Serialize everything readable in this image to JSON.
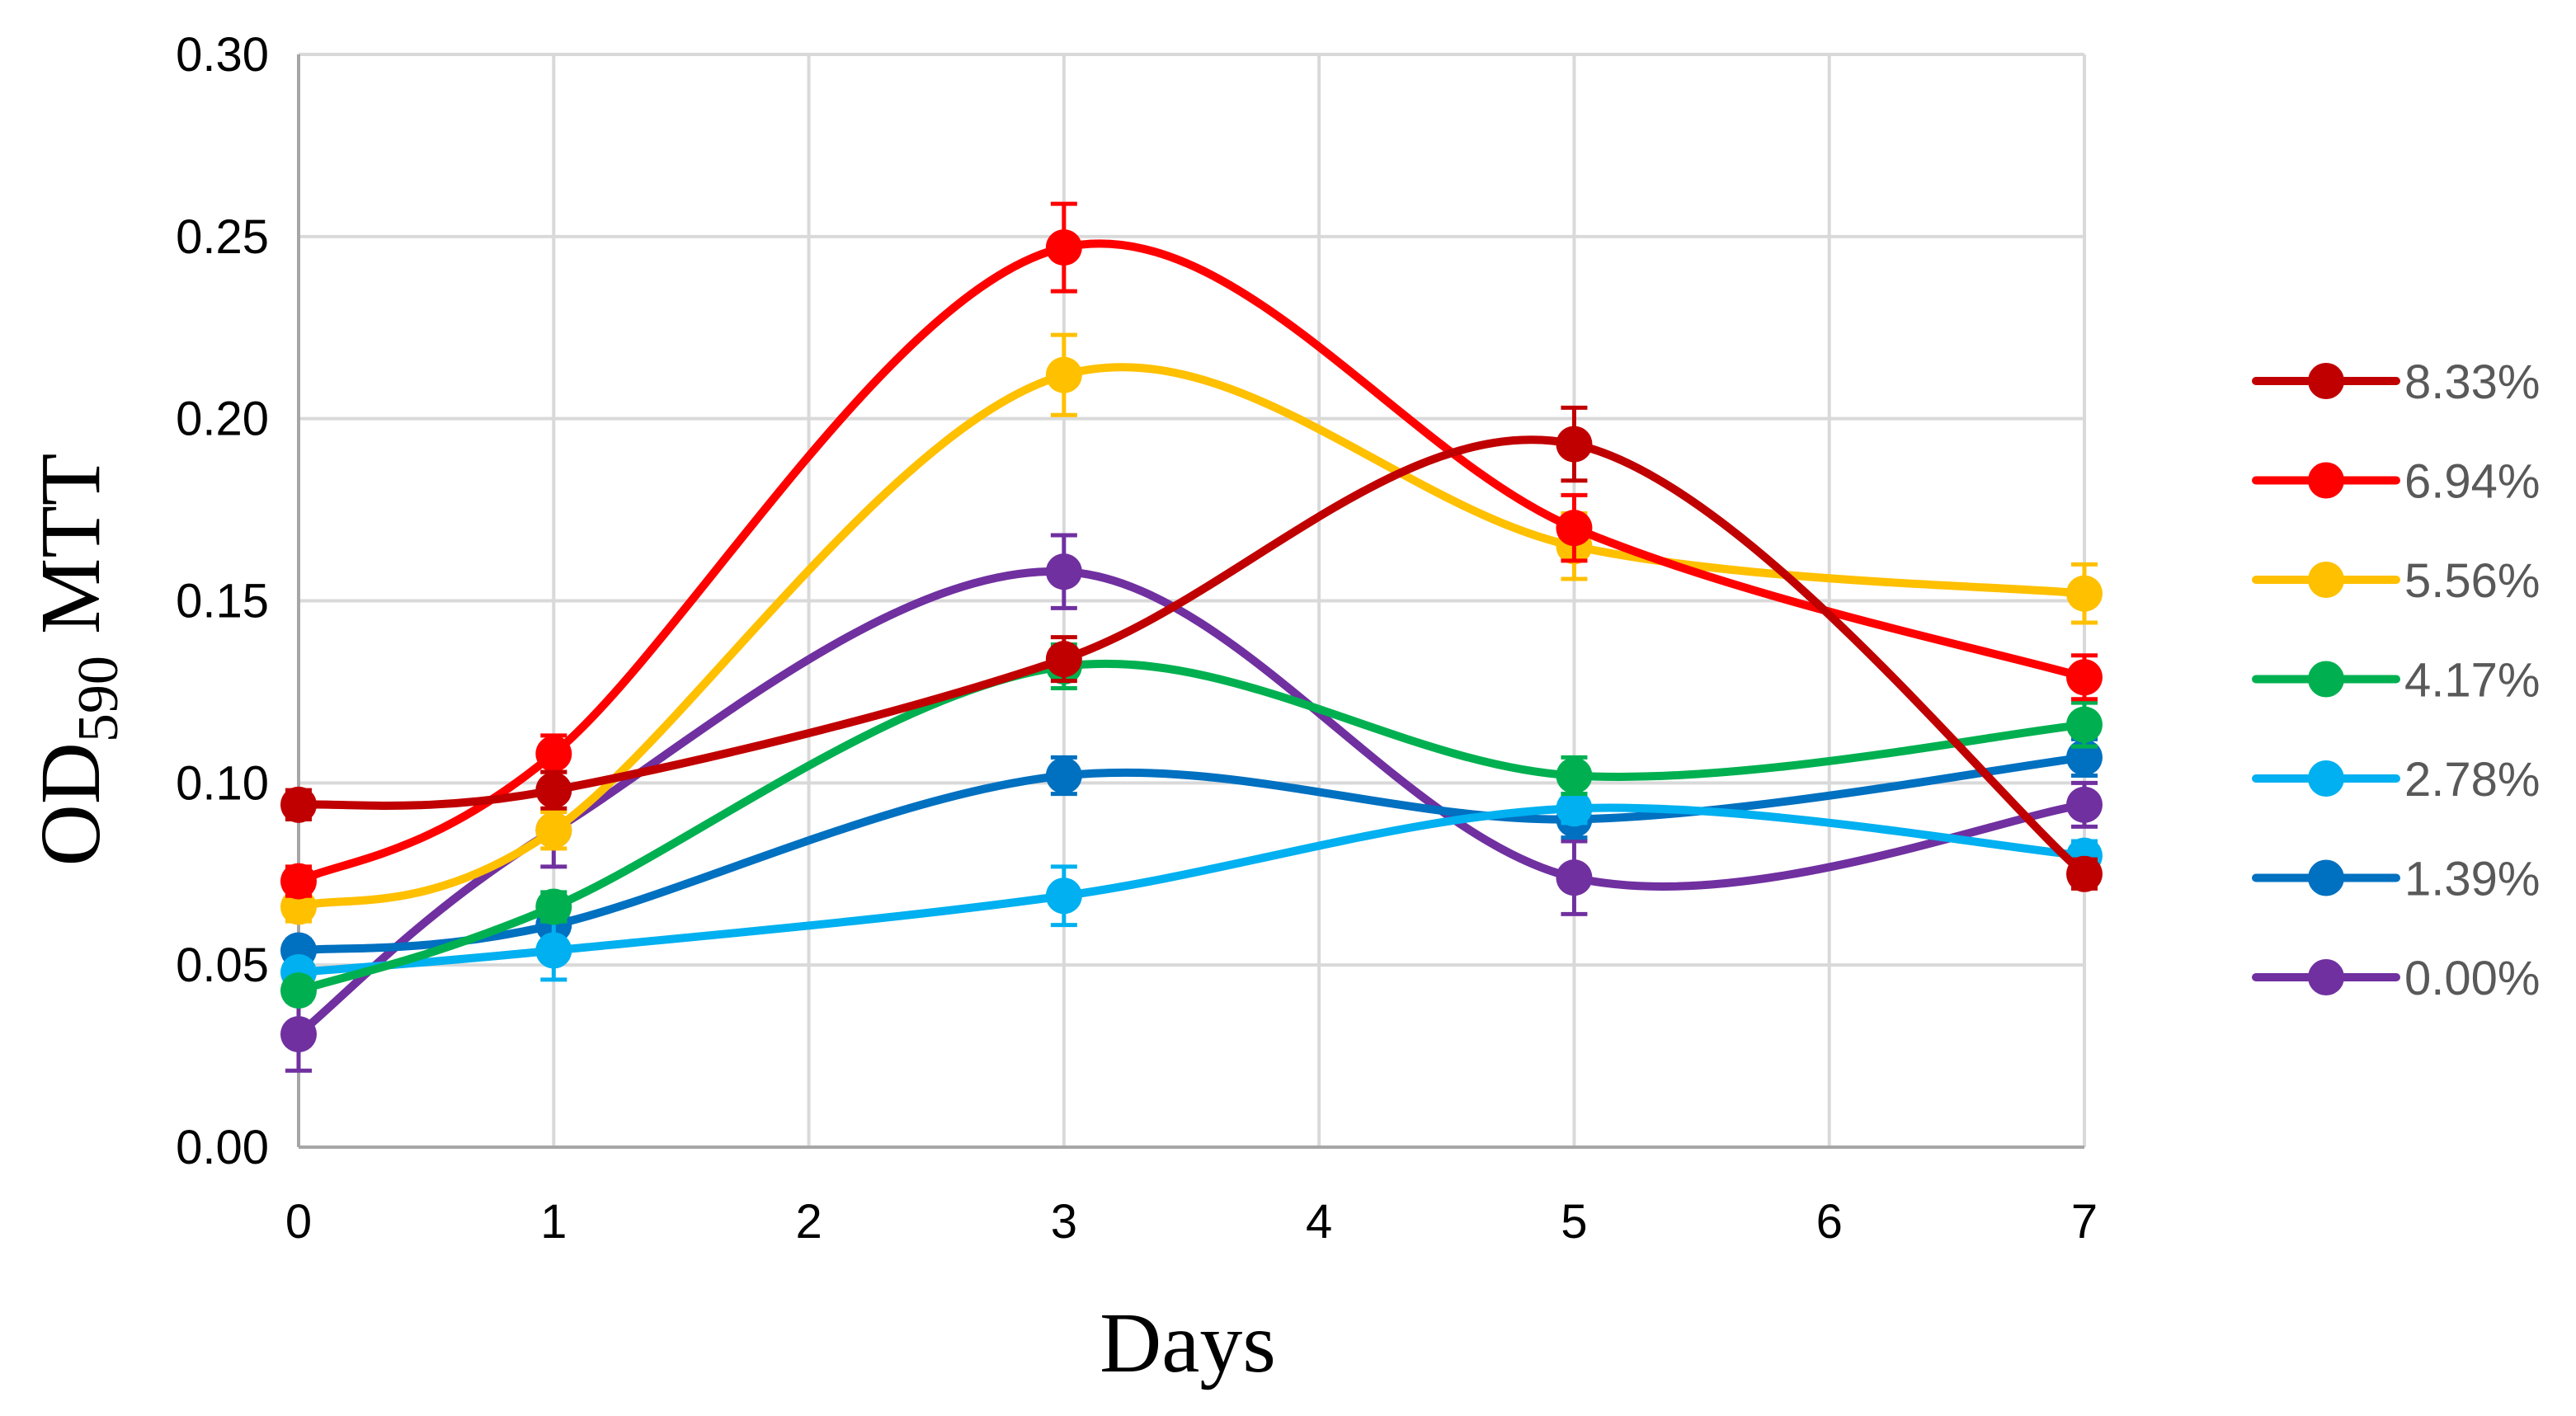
{
  "chart_data": {
    "type": "line",
    "title": "",
    "xlabel": "Days",
    "ylabel": {
      "main": "OD",
      "subscript": "590",
      "suffix": " MTT"
    },
    "xlim": [
      0,
      7
    ],
    "ylim": [
      0,
      0.3
    ],
    "grid": true,
    "legend_position": "right",
    "x_ticks": [
      "0",
      "1",
      "2",
      "3",
      "4",
      "5",
      "6",
      "7"
    ],
    "y_ticks": [
      "0.00",
      "0.05",
      "0.10",
      "0.15",
      "0.20",
      "0.25",
      "0.30"
    ],
    "x": [
      0,
      1,
      3,
      5,
      7
    ],
    "series": [
      {
        "name": "8.33%",
        "color": "#C00000",
        "values": [
          0.094,
          0.098,
          0.134,
          0.193,
          0.075
        ],
        "errors": [
          0.004,
          0.005,
          0.006,
          0.01,
          0.004
        ]
      },
      {
        "name": "6.94%",
        "color": "#FF0000",
        "values": [
          0.073,
          0.108,
          0.247,
          0.17,
          0.129
        ],
        "errors": [
          0.004,
          0.005,
          0.012,
          0.009,
          0.006
        ]
      },
      {
        "name": "5.56%",
        "color": "#FFC000",
        "values": [
          0.066,
          0.087,
          0.212,
          0.165,
          0.152
        ],
        "errors": [
          0.004,
          0.005,
          0.011,
          0.009,
          0.008
        ]
      },
      {
        "name": "4.17%",
        "color": "#00B050",
        "values": [
          0.043,
          0.066,
          0.132,
          0.102,
          0.116
        ],
        "errors": [
          0.003,
          0.004,
          0.006,
          0.005,
          0.006
        ]
      },
      {
        "name": "2.78%",
        "color": "#00B0F0",
        "values": [
          0.048,
          0.054,
          0.069,
          0.093,
          0.08
        ],
        "errors": [
          0.003,
          0.008,
          0.008,
          0.004,
          0.004
        ]
      },
      {
        "name": "1.39%",
        "color": "#0070C0",
        "values": [
          0.054,
          0.061,
          0.102,
          0.09,
          0.107
        ],
        "errors": [
          0.003,
          0.004,
          0.005,
          0.005,
          0.005
        ]
      },
      {
        "name": "0.00%",
        "color": "#7030A0",
        "values": [
          0.031,
          0.087,
          0.158,
          0.074,
          0.094
        ],
        "errors": [
          0.01,
          0.01,
          0.01,
          0.01,
          0.006
        ]
      }
    ]
  }
}
